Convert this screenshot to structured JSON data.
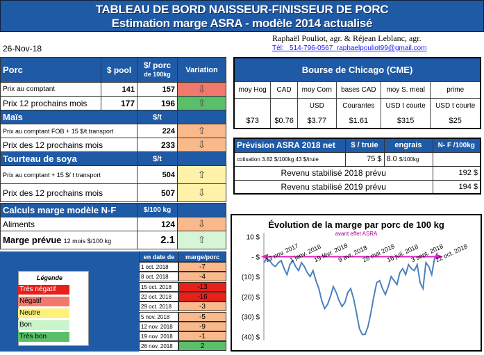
{
  "header": {
    "title": "TABLEAU DE BORD NAISSEUR-FINISSEUR DE PORC",
    "subtitle": "Estimation marge ASRA - modèle 2014 actualisé"
  },
  "date": "26-Nov-18",
  "authors": "Raphaël Pouliot, agr.   &   Réjean Leblanc, agr.",
  "contact": {
    "tel": "Tél:",
    "phone": "514-796-0567",
    "email": "raphaelpouliot99@gmail.com"
  },
  "porc": {
    "title": "Porc",
    "col_pool": "$ pool",
    "col_porc": "$/ porc",
    "col_porc2": "de 100kg",
    "col_var": "Variation",
    "rows": [
      {
        "label": "Prix au comptant",
        "pool": "141",
        "porc": "157",
        "arrow": "⇩"
      },
      {
        "label": "Prix 12 prochains mois",
        "pool": "177",
        "porc": "196",
        "arrow": "⇧"
      }
    ]
  },
  "mais": {
    "title": "Maïs",
    "unit": "$/t",
    "rows": [
      {
        "label": "Prix au comptant FOB + 15 $/t transport",
        "value": "224",
        "arrow": "⇧"
      },
      {
        "label": "Prix des 12 prochains mois",
        "value": "233",
        "arrow": "⇩"
      }
    ]
  },
  "soya": {
    "title": "Tourteau de soya",
    "unit": "$/t",
    "rows": [
      {
        "label": "Prix au comptant + 15 $/ t  transport",
        "value": "504",
        "arrow": "⇧"
      },
      {
        "label": "Prix des 12 prochains mois",
        "value": "507",
        "arrow": "⇩"
      }
    ]
  },
  "calcul": {
    "title": "Calculs marge  modèle N-F",
    "unit": "$/100 kg",
    "aliments_label": "Aliments",
    "aliments_value": "124",
    "aliments_arrow": "⇩",
    "marge_label": "Marge prévue",
    "marge_suffix": "12 mois  $/100 kg",
    "marge_value": "2.1",
    "marge_arrow": "⇧"
  },
  "history": {
    "col_date": "en date de",
    "col_marge": "marge/porc",
    "rows": [
      {
        "date": "1 oct. 2018",
        "value": "-7"
      },
      {
        "date": "8 oct. 2018",
        "value": "-4"
      },
      {
        "date": "15 oct. 2018",
        "value": "-13"
      },
      {
        "date": "22 oct. 2018",
        "value": "-16"
      },
      {
        "date": "29 oct. 2018",
        "value": "-3"
      },
      {
        "date": "5 nov. 2018",
        "value": "-5"
      },
      {
        "date": "12 nov. 2018",
        "value": "-9"
      },
      {
        "date": "19 nov. 2018",
        "value": "-1"
      },
      {
        "date": "26 nov. 2018",
        "value": "2"
      }
    ]
  },
  "legend": {
    "title": "Légende",
    "items": [
      {
        "label": "Très négatif",
        "color": "#e8201a"
      },
      {
        "label": "Négatif",
        "color": "#f0796b"
      },
      {
        "label": "Neutre",
        "color": "#fff27a"
      },
      {
        "label": "Bon",
        "color": "#c9f5c9"
      },
      {
        "label": "Très bon",
        "color": "#5bbf6a"
      }
    ]
  },
  "cme": {
    "title": "Bourse de Chicago (CME)",
    "headers": [
      "moy Hog",
      "CAD",
      "moy Corn",
      "bases CAD",
      "moy S. meal",
      "prime"
    ],
    "units": [
      "",
      "",
      "USD",
      "Courantes",
      "USD t courte",
      "USD t courte"
    ],
    "values": [
      "$73",
      "$0.76",
      "$3.77",
      "$1.61",
      "$315",
      "$25"
    ]
  },
  "asra": {
    "title": "Prévision  ASRA 2018 net",
    "col_truie": "$ / truie",
    "col_engrais": "engrais",
    "col_nf": "N- F /100kg",
    "cotisation_label": "cotisation 3.82 $/100kg  43 $/truie",
    "truie_value": "75 $",
    "engrais_value": "8.0",
    "engrais_unit": "$/100kg",
    "rev2018_label": "Revenu stabilisé 2018 prévu",
    "rev2018_value": "192 $",
    "rev2019_label": "Revenu stabilisé 2019 prévu",
    "rev2019_value": "194 $"
  },
  "chart_data": {
    "type": "line",
    "title": "Évolution de la marge par porc de 100 kg",
    "subtitle": "avant effet ASRA",
    "yticks": [
      "10 $",
      "- $",
      "(10) $",
      "(20) $",
      "(30) $",
      "(40) $"
    ],
    "ylim": [
      -42,
      12
    ],
    "xticks": [
      "13 nov. 2017",
      "1 janv. 2018",
      "19 févr. 2018",
      "9 avr. 2018",
      "28 mai 2018",
      "16 juil. 2018",
      "3 sept. 2018",
      "22 oct. 2018"
    ],
    "series": [
      {
        "values": [
          -3,
          -1,
          -2,
          -4,
          -5,
          -3,
          -2,
          -6,
          -9,
          -4,
          -2,
          -5,
          -7,
          -3,
          -5,
          -8,
          -10,
          -7,
          -12,
          -16,
          -22,
          -26,
          -24,
          -20,
          -15,
          -18,
          -22,
          -25,
          -23,
          -18,
          -16,
          -21,
          -28,
          -36,
          -39,
          -39,
          -35,
          -28,
          -20,
          -13,
          -12,
          -16,
          -19,
          -15,
          -10,
          -12,
          -14,
          -8,
          -6,
          -9,
          -4,
          -6,
          -7,
          -4,
          -13,
          -16,
          -3,
          -5,
          -9,
          -1,
          2
        ],
        "color": "#4a80c0"
      }
    ],
    "reference": {
      "value": 0,
      "color": "#e020c0"
    }
  }
}
